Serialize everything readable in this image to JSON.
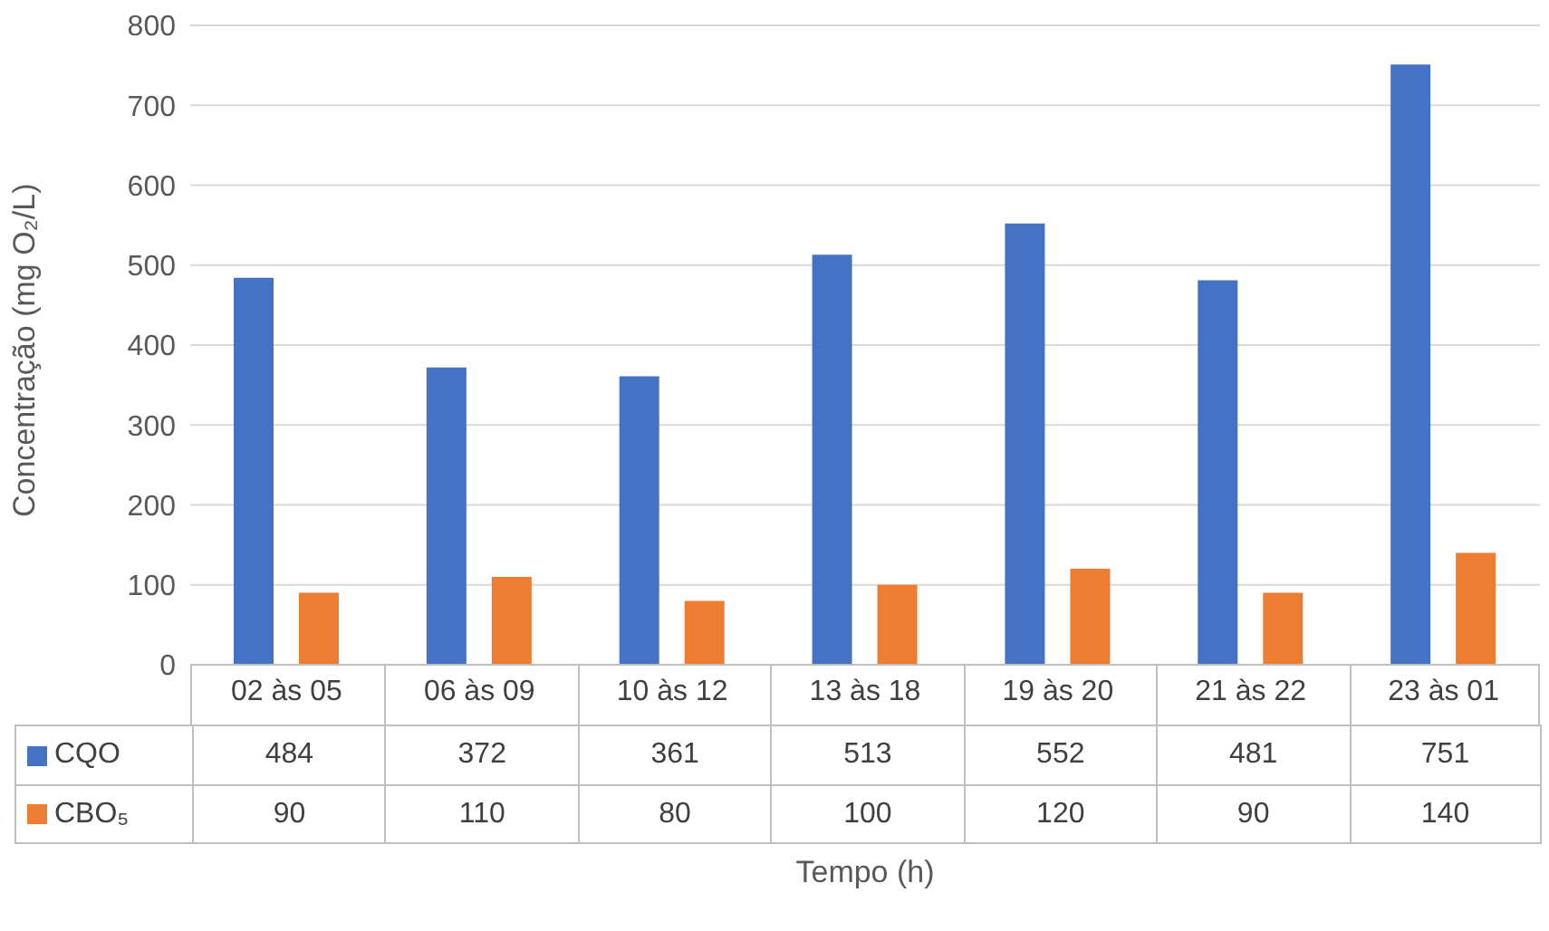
{
  "chart_data": {
    "type": "bar",
    "xlabel": "Tempo (h)",
    "ylabel": "Concentração (mg O₂/L)",
    "categories": [
      "02 às 05",
      "06 às 09",
      "10 às 12",
      "13 às 18",
      "19 às 20",
      "21 às 22",
      "23 às 01"
    ],
    "series": [
      {
        "name": "CQO",
        "color": "#4472c4",
        "values": [
          484,
          372,
          361,
          513,
          552,
          481,
          751
        ]
      },
      {
        "name": "CBO₅",
        "color": "#ed7d31",
        "values": [
          90,
          110,
          80,
          100,
          120,
          90,
          140
        ]
      }
    ],
    "ylim": [
      0,
      800
    ],
    "yticks": [
      0,
      100,
      200,
      300,
      400,
      500,
      600,
      700,
      800
    ],
    "grid": "y",
    "legend": "bottom",
    "data_labels": true
  }
}
